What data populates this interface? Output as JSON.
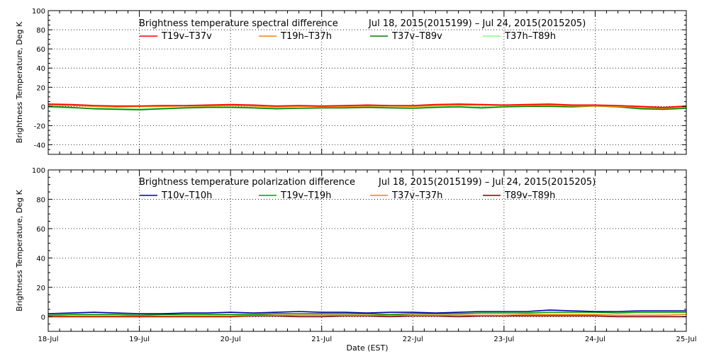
{
  "chart_data": [
    {
      "type": "line",
      "title": "Brightness temperature spectral difference",
      "date_range": "Jul 18, 2015(2015199) – Jul 24, 2015(2015205)",
      "ylabel": "Brightness Temperature, Deg K",
      "xlabel": "",
      "ylim": [
        -50,
        100
      ],
      "yticks": [
        "-40",
        "-20",
        "0",
        "20",
        "40",
        "60",
        "80",
        "100"
      ],
      "ytick_values": [
        -40,
        -20,
        0,
        20,
        40,
        60,
        80,
        100
      ],
      "xlim": [
        0,
        7
      ],
      "grid": true,
      "legend_position": "top",
      "x": [
        0,
        0.25,
        0.5,
        0.75,
        1,
        1.25,
        1.5,
        1.75,
        2,
        2.25,
        2.5,
        2.75,
        3,
        3.25,
        3.5,
        3.75,
        4,
        4.25,
        4.5,
        4.75,
        5,
        5.25,
        5.5,
        5.75,
        6,
        6.25,
        6.5,
        6.75,
        7
      ],
      "series": [
        {
          "name": "T19v–T37v",
          "color": "#ff0000",
          "values": [
            2.5,
            2.0,
            1.0,
            0.5,
            0.5,
            1.0,
            1.0,
            1.5,
            2.0,
            1.5,
            0.5,
            1.0,
            0.5,
            1.0,
            1.5,
            1.0,
            1.0,
            2.0,
            2.5,
            2.0,
            1.5,
            2.0,
            2.5,
            1.5,
            1.5,
            1.0,
            0.0,
            -1.0,
            0.5
          ]
        },
        {
          "name": "T19h–T37h",
          "color": "#ff8000",
          "values": [
            1.5,
            1.0,
            0.0,
            -0.5,
            0.0,
            0.0,
            0.5,
            0.5,
            1.0,
            0.5,
            -0.5,
            0.0,
            0.0,
            0.0,
            0.5,
            0.5,
            0.0,
            1.0,
            1.5,
            1.5,
            1.0,
            1.0,
            1.5,
            0.5,
            0.5,
            0.0,
            -1.0,
            -2.0,
            -0.5
          ]
        },
        {
          "name": "T37v–T89v",
          "color": "#008000",
          "values": [
            0.0,
            -1.0,
            -2.5,
            -3.0,
            -3.5,
            -2.5,
            -1.5,
            -1.0,
            -1.0,
            -1.5,
            -2.5,
            -2.0,
            -1.5,
            -1.5,
            -1.0,
            -1.5,
            -2.0,
            -1.0,
            -0.5,
            -1.5,
            -0.5,
            0.0,
            0.0,
            -0.5,
            0.5,
            -0.5,
            -2.5,
            -3.0,
            -2.0
          ]
        },
        {
          "name": "T37h–T89h",
          "color": "#80ff80",
          "values": [
            -1.0,
            -1.5,
            -2.0,
            -2.0,
            -2.5,
            -2.0,
            -1.0,
            -0.5,
            -0.5,
            -1.0,
            -1.5,
            -1.5,
            -1.0,
            -1.0,
            -0.5,
            -1.0,
            -1.0,
            0.0,
            0.5,
            -0.5,
            0.0,
            0.5,
            0.5,
            0.0,
            1.0,
            0.0,
            -1.5,
            -2.0,
            -1.0
          ]
        }
      ]
    },
    {
      "type": "line",
      "title": "Brightness temperature polarization difference",
      "date_range": "Jul 18, 2015(2015199) – Jul 24, 2015(2015205)",
      "ylabel": "Brightness Temperature, Deg K",
      "xlabel": "Date (EST)",
      "ylim": [
        -10,
        100
      ],
      "yticks": [
        "0",
        "20",
        "40",
        "60",
        "80",
        "100"
      ],
      "ytick_values": [
        0,
        20,
        40,
        60,
        80,
        100
      ],
      "xlim": [
        0,
        7
      ],
      "xticks": [
        "18-Jul",
        "19-Jul",
        "20-Jul",
        "21-Jul",
        "22-Jul",
        "23-Jul",
        "24-Jul",
        "25-Jul"
      ],
      "xtick_values": [
        0,
        1,
        2,
        3,
        4,
        5,
        6,
        7
      ],
      "grid": true,
      "legend_position": "top",
      "x": [
        0,
        0.25,
        0.5,
        0.75,
        1,
        1.25,
        1.5,
        1.75,
        2,
        2.25,
        2.5,
        2.75,
        3,
        3.25,
        3.5,
        3.75,
        4,
        4.25,
        4.5,
        4.75,
        5,
        5.25,
        5.5,
        5.75,
        6,
        6.25,
        6.5,
        6.75,
        7
      ],
      "series": [
        {
          "name": "T10v–T10h",
          "color": "#0000a0",
          "values": [
            2.0,
            2.5,
            3.0,
            2.5,
            2.0,
            2.0,
            2.5,
            2.5,
            3.0,
            2.5,
            3.0,
            3.5,
            3.0,
            3.0,
            2.5,
            3.0,
            3.0,
            2.5,
            3.0,
            3.5,
            3.5,
            3.5,
            4.5,
            4.0,
            3.5,
            3.5,
            4.0,
            4.0,
            4.0
          ]
        },
        {
          "name": "T19v–T19h",
          "color": "#00a000",
          "values": [
            1.0,
            1.5,
            1.5,
            1.5,
            1.0,
            1.5,
            1.5,
            1.5,
            1.5,
            1.5,
            2.0,
            2.0,
            2.0,
            2.0,
            2.0,
            1.5,
            2.0,
            2.0,
            2.0,
            2.5,
            2.5,
            2.5,
            3.0,
            3.0,
            3.0,
            2.5,
            3.0,
            3.0,
            3.0
          ]
        },
        {
          "name": "T37v–T37h",
          "color": "#ff8000",
          "values": [
            0.5,
            0.5,
            0.5,
            0.5,
            0.5,
            0.5,
            0.5,
            0.5,
            0.5,
            1.0,
            1.0,
            1.0,
            1.0,
            1.0,
            1.0,
            1.0,
            1.0,
            1.0,
            1.0,
            1.0,
            1.0,
            1.5,
            1.5,
            1.5,
            1.5,
            1.0,
            1.0,
            1.0,
            1.5
          ]
        },
        {
          "name": "T89v–T89h",
          "color": "#800000",
          "values": [
            0.0,
            0.0,
            0.0,
            0.0,
            0.0,
            0.0,
            0.0,
            0.0,
            0.0,
            0.5,
            0.5,
            0.0,
            0.0,
            0.5,
            0.5,
            0.0,
            0.5,
            0.5,
            0.0,
            0.5,
            0.5,
            0.5,
            0.5,
            0.5,
            0.5,
            0.0,
            0.0,
            0.0,
            0.0
          ]
        }
      ]
    }
  ]
}
